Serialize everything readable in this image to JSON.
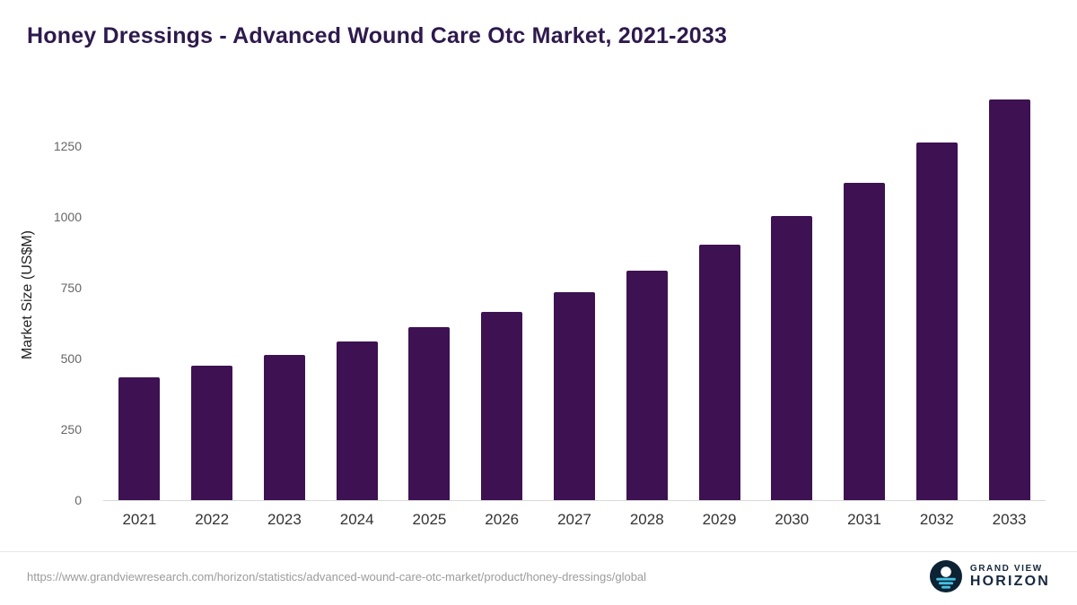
{
  "page": {
    "title": "Honey Dressings - Advanced Wound Care Otc Market, 2021-2033"
  },
  "chart_data": {
    "type": "bar",
    "title": "Honey Dressings - Advanced Wound Care Otc Market, 2021-2033",
    "categories": [
      "2021",
      "2022",
      "2023",
      "2024",
      "2025",
      "2026",
      "2027",
      "2028",
      "2029",
      "2030",
      "2031",
      "2032",
      "2033"
    ],
    "values": [
      435,
      476,
      514,
      560,
      610,
      666,
      735,
      810,
      902,
      1004,
      1121,
      1262,
      1414
    ],
    "xlabel": "",
    "ylabel": "Market Size (US$M)",
    "ylim": [
      0,
      1450
    ],
    "yticks": [
      0,
      250,
      500,
      750,
      1000,
      1250
    ],
    "grid": false,
    "legend": "none"
  },
  "footer": {
    "source_url": "https://www.grandviewresearch.com/horizon/statistics/advanced-wound-care-otc-market/product/honey-dressings/global",
    "brand": {
      "line1": "GRAND VIEW",
      "line2": "HORIZON"
    }
  },
  "colors": {
    "bar": "#3d1152",
    "title": "#2e1a4d",
    "x-label": "#333333",
    "y-tick": "#666666",
    "axis-line": "#d9d9d9",
    "divider": "#e6e6e6",
    "footer-text": "#9b9b9b",
    "brand-navy": "#16283e",
    "brand-teal": "#45c2e3"
  }
}
